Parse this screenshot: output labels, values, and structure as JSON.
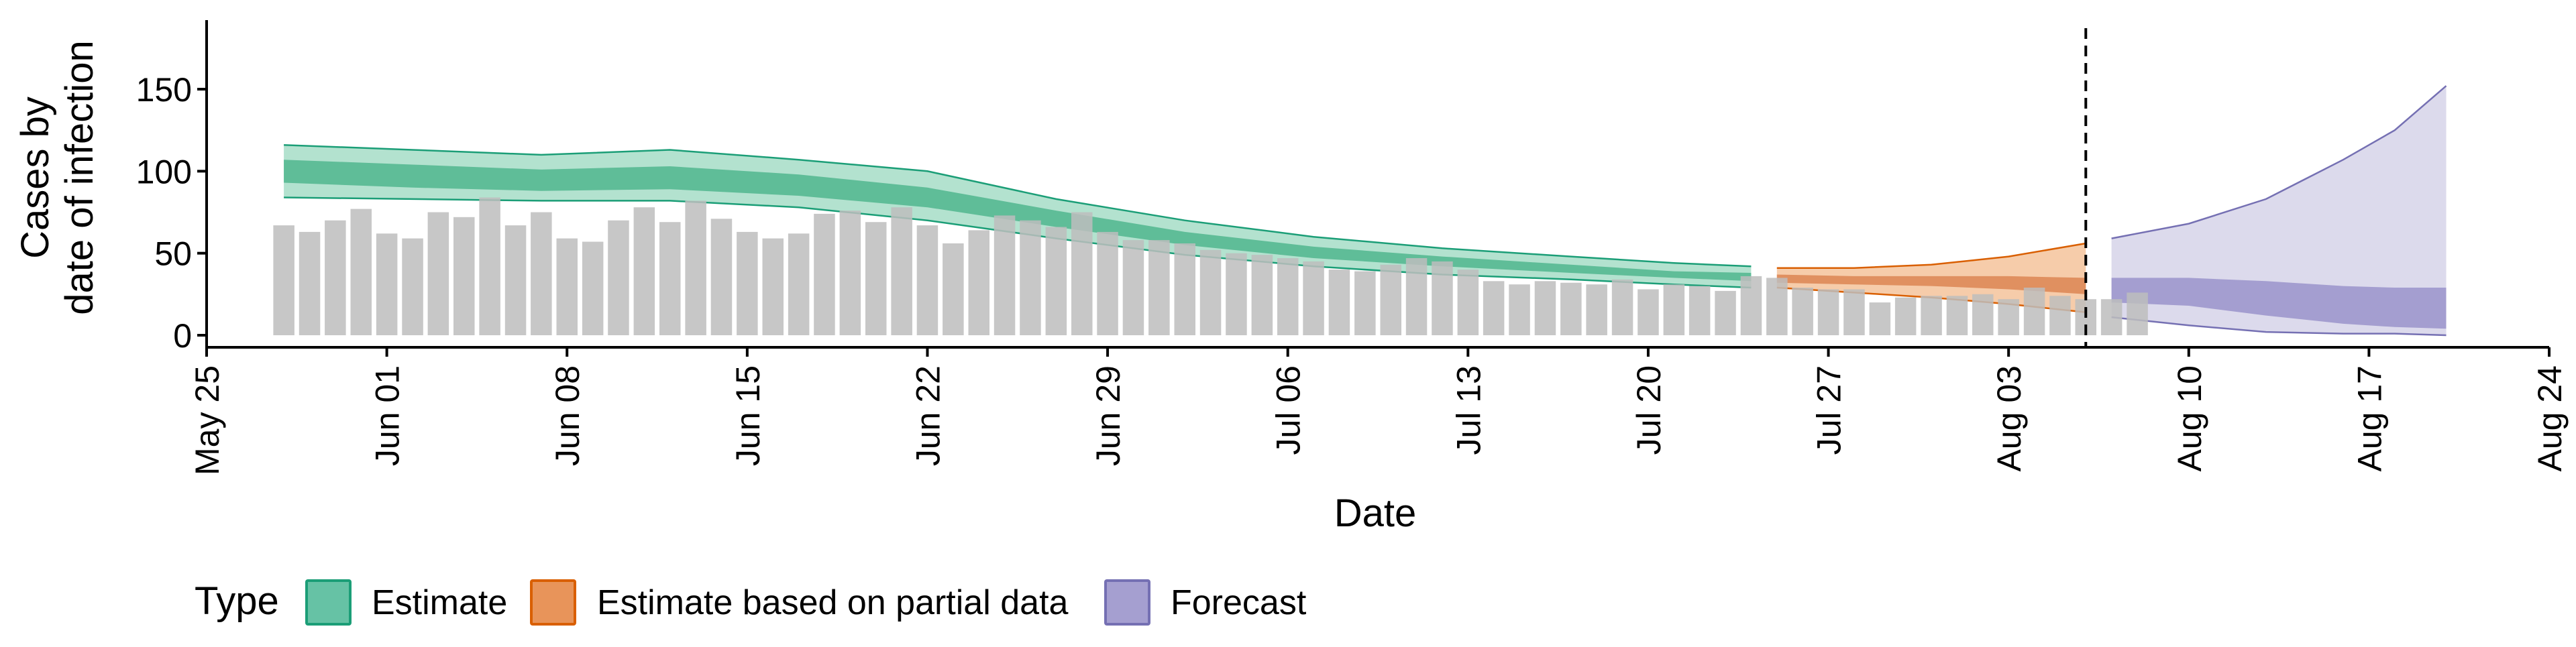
{
  "chart_data": {
    "type": "bar",
    "title": "",
    "xlabel": "Date",
    "ylabel_lines": [
      "Cases by",
      "date of infection"
    ],
    "ylim": [
      0,
      160
    ],
    "yticks": [
      0,
      50,
      100,
      150
    ],
    "xlim": [
      "2020-05-25",
      "2020-08-24"
    ],
    "x_tick_labels": [
      "May 25",
      "Jun 01",
      "Jun 08",
      "Jun 15",
      "Jun 22",
      "Jun 29",
      "Jul 06",
      "Jul 13",
      "Jul 20",
      "Jul 27",
      "Aug 03",
      "Aug 10",
      "Aug 17",
      "Aug 24"
    ],
    "x_tick_dates": [
      "2020-05-25",
      "2020-06-01",
      "2020-06-08",
      "2020-06-15",
      "2020-06-22",
      "2020-06-29",
      "2020-07-06",
      "2020-07-13",
      "2020-07-20",
      "2020-07-27",
      "2020-08-03",
      "2020-08-10",
      "2020-08-17",
      "2020-08-24"
    ],
    "forecast_date": "2020-08-06",
    "grid": false,
    "legend": {
      "title": "Type",
      "position": "bottom",
      "entries": [
        {
          "label": "Estimate",
          "fill": "#66c2a5",
          "stroke": "#1b9e77"
        },
        {
          "label": "Estimate based on partial data",
          "fill": "#e8945a",
          "stroke": "#d95f02"
        },
        {
          "label": "Forecast",
          "fill": "#a59fd0",
          "stroke": "#7570b3"
        }
      ]
    },
    "colors": {
      "bars": "#bdbdbd",
      "estimate_outer": "#b3e2cf",
      "estimate_inner": "#5fbd98",
      "estimate_line": "#1b9e77",
      "partial_outer": "#f6ccaa",
      "partial_inner": "#e09060",
      "partial_line": "#d95f02",
      "forecast_outer": "#dcdaec",
      "forecast_inner": "#a49ed0",
      "forecast_line": "#7570b3"
    },
    "bars": {
      "start_date": "2020-05-28",
      "values": [
        67,
        63,
        70,
        77,
        62,
        59,
        75,
        72,
        84,
        67,
        75,
        59,
        57,
        70,
        78,
        69,
        82,
        71,
        63,
        59,
        62,
        74,
        76,
        69,
        78,
        67,
        56,
        64,
        73,
        70,
        66,
        75,
        63,
        58,
        58,
        56,
        52,
        50,
        49,
        47,
        45,
        40,
        39,
        43,
        47,
        45,
        40,
        33,
        31,
        33,
        32,
        31,
        34,
        28,
        31,
        30,
        27,
        36,
        35,
        29,
        28,
        28,
        20,
        23,
        24,
        24,
        25,
        22,
        29,
        24,
        22,
        22,
        26
      ]
    },
    "series": [
      {
        "name": "Estimate",
        "dates": [
          "2020-05-28",
          "2020-06-02",
          "2020-06-07",
          "2020-06-12",
          "2020-06-17",
          "2020-06-22",
          "2020-06-27",
          "2020-07-02",
          "2020-07-07",
          "2020-07-12",
          "2020-07-17",
          "2020-07-21",
          "2020-07-24"
        ],
        "upper_outer": [
          116,
          113,
          110,
          113,
          107,
          100,
          83,
          70,
          60,
          53,
          48,
          44,
          42
        ],
        "upper_inner": [
          107,
          104,
          101,
          103,
          98,
          90,
          76,
          63,
          54,
          48,
          43,
          39,
          38
        ],
        "lower_inner": [
          93,
          90,
          88,
          89,
          85,
          78,
          66,
          55,
          47,
          42,
          38,
          35,
          33
        ],
        "lower_outer": [
          84,
          83,
          82,
          82,
          78,
          70,
          59,
          49,
          42,
          37,
          34,
          31,
          29
        ]
      },
      {
        "name": "Estimate based on partial data",
        "dates": [
          "2020-07-25",
          "2020-07-28",
          "2020-07-31",
          "2020-08-03",
          "2020-08-06"
        ],
        "upper_outer": [
          41,
          41,
          43,
          48,
          56
        ],
        "upper_inner": [
          37,
          36,
          36,
          36,
          35
        ],
        "lower_inner": [
          32,
          31,
          30,
          28,
          25
        ],
        "lower_outer": [
          29,
          26,
          23,
          19,
          14
        ]
      },
      {
        "name": "Forecast",
        "dates": [
          "2020-08-07",
          "2020-08-10",
          "2020-08-13",
          "2020-08-16",
          "2020-08-18",
          "2020-08-20"
        ],
        "upper_outer": [
          59,
          68,
          83,
          107,
          125,
          152
        ],
        "upper_inner": [
          35,
          35,
          33,
          30,
          29,
          29
        ],
        "lower_inner": [
          20,
          18,
          12,
          7,
          5,
          4
        ],
        "lower_outer": [
          11,
          6,
          2,
          1,
          1,
          0
        ]
      }
    ]
  }
}
